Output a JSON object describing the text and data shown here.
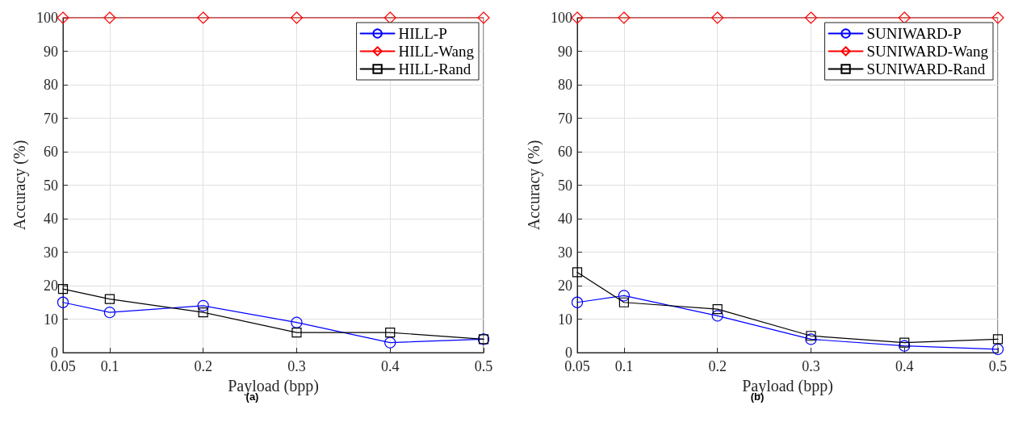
{
  "chart_data": [
    {
      "type": "line",
      "xlabel": "Payload (bpp)",
      "ylabel": "Accuracy (%)",
      "x": [
        0.05,
        0.1,
        0.2,
        0.3,
        0.4,
        0.5
      ],
      "series": [
        {
          "name": "HILL-P",
          "color": "#0000ff",
          "marker": "circle",
          "values": [
            15,
            12,
            14,
            9,
            3,
            4
          ]
        },
        {
          "name": "HILL-Wang",
          "color": "#ff0000",
          "marker": "diamond",
          "values": [
            100,
            100,
            100,
            100,
            100,
            100
          ]
        },
        {
          "name": "HILL-Rand",
          "color": "#000000",
          "marker": "square",
          "values": [
            19,
            16,
            12,
            6,
            6,
            4
          ]
        }
      ],
      "xlim": [
        0.05,
        0.5
      ],
      "xticks": [
        0.05,
        0.1,
        0.2,
        0.3,
        0.4,
        0.5
      ],
      "ylim": [
        0,
        100
      ],
      "yticks": [
        0,
        10,
        20,
        30,
        40,
        50,
        60,
        70,
        80,
        90,
        100
      ],
      "grid": true,
      "legend": "top right",
      "annotations": [
        "(a)"
      ]
    },
    {
      "type": "line",
      "xlabel": "Payload (bpp)",
      "ylabel": "Accuracy (%)",
      "x": [
        0.05,
        0.1,
        0.2,
        0.3,
        0.4,
        0.5
      ],
      "series": [
        {
          "name": "SUNIWARD-P",
          "color": "#0000ff",
          "marker": "circle",
          "values": [
            15,
            17,
            11,
            4,
            2,
            1
          ]
        },
        {
          "name": "SUNIWARD-Wang",
          "color": "#ff0000",
          "marker": "diamond",
          "values": [
            100,
            100,
            100,
            100,
            100,
            100
          ]
        },
        {
          "name": "SUNIWARD-Rand",
          "color": "#000000",
          "marker": "square",
          "values": [
            24,
            15,
            13,
            5,
            3,
            4
          ]
        }
      ],
      "xlim": [
        0.05,
        0.5
      ],
      "xticks": [
        0.05,
        0.1,
        0.2,
        0.3,
        0.4,
        0.5
      ],
      "ylim": [
        0,
        100
      ],
      "yticks": [
        0,
        10,
        20,
        30,
        40,
        50,
        60,
        70,
        80,
        90,
        100
      ],
      "grid": true,
      "legend": "top right",
      "annotations": [
        "(b)"
      ]
    }
  ]
}
